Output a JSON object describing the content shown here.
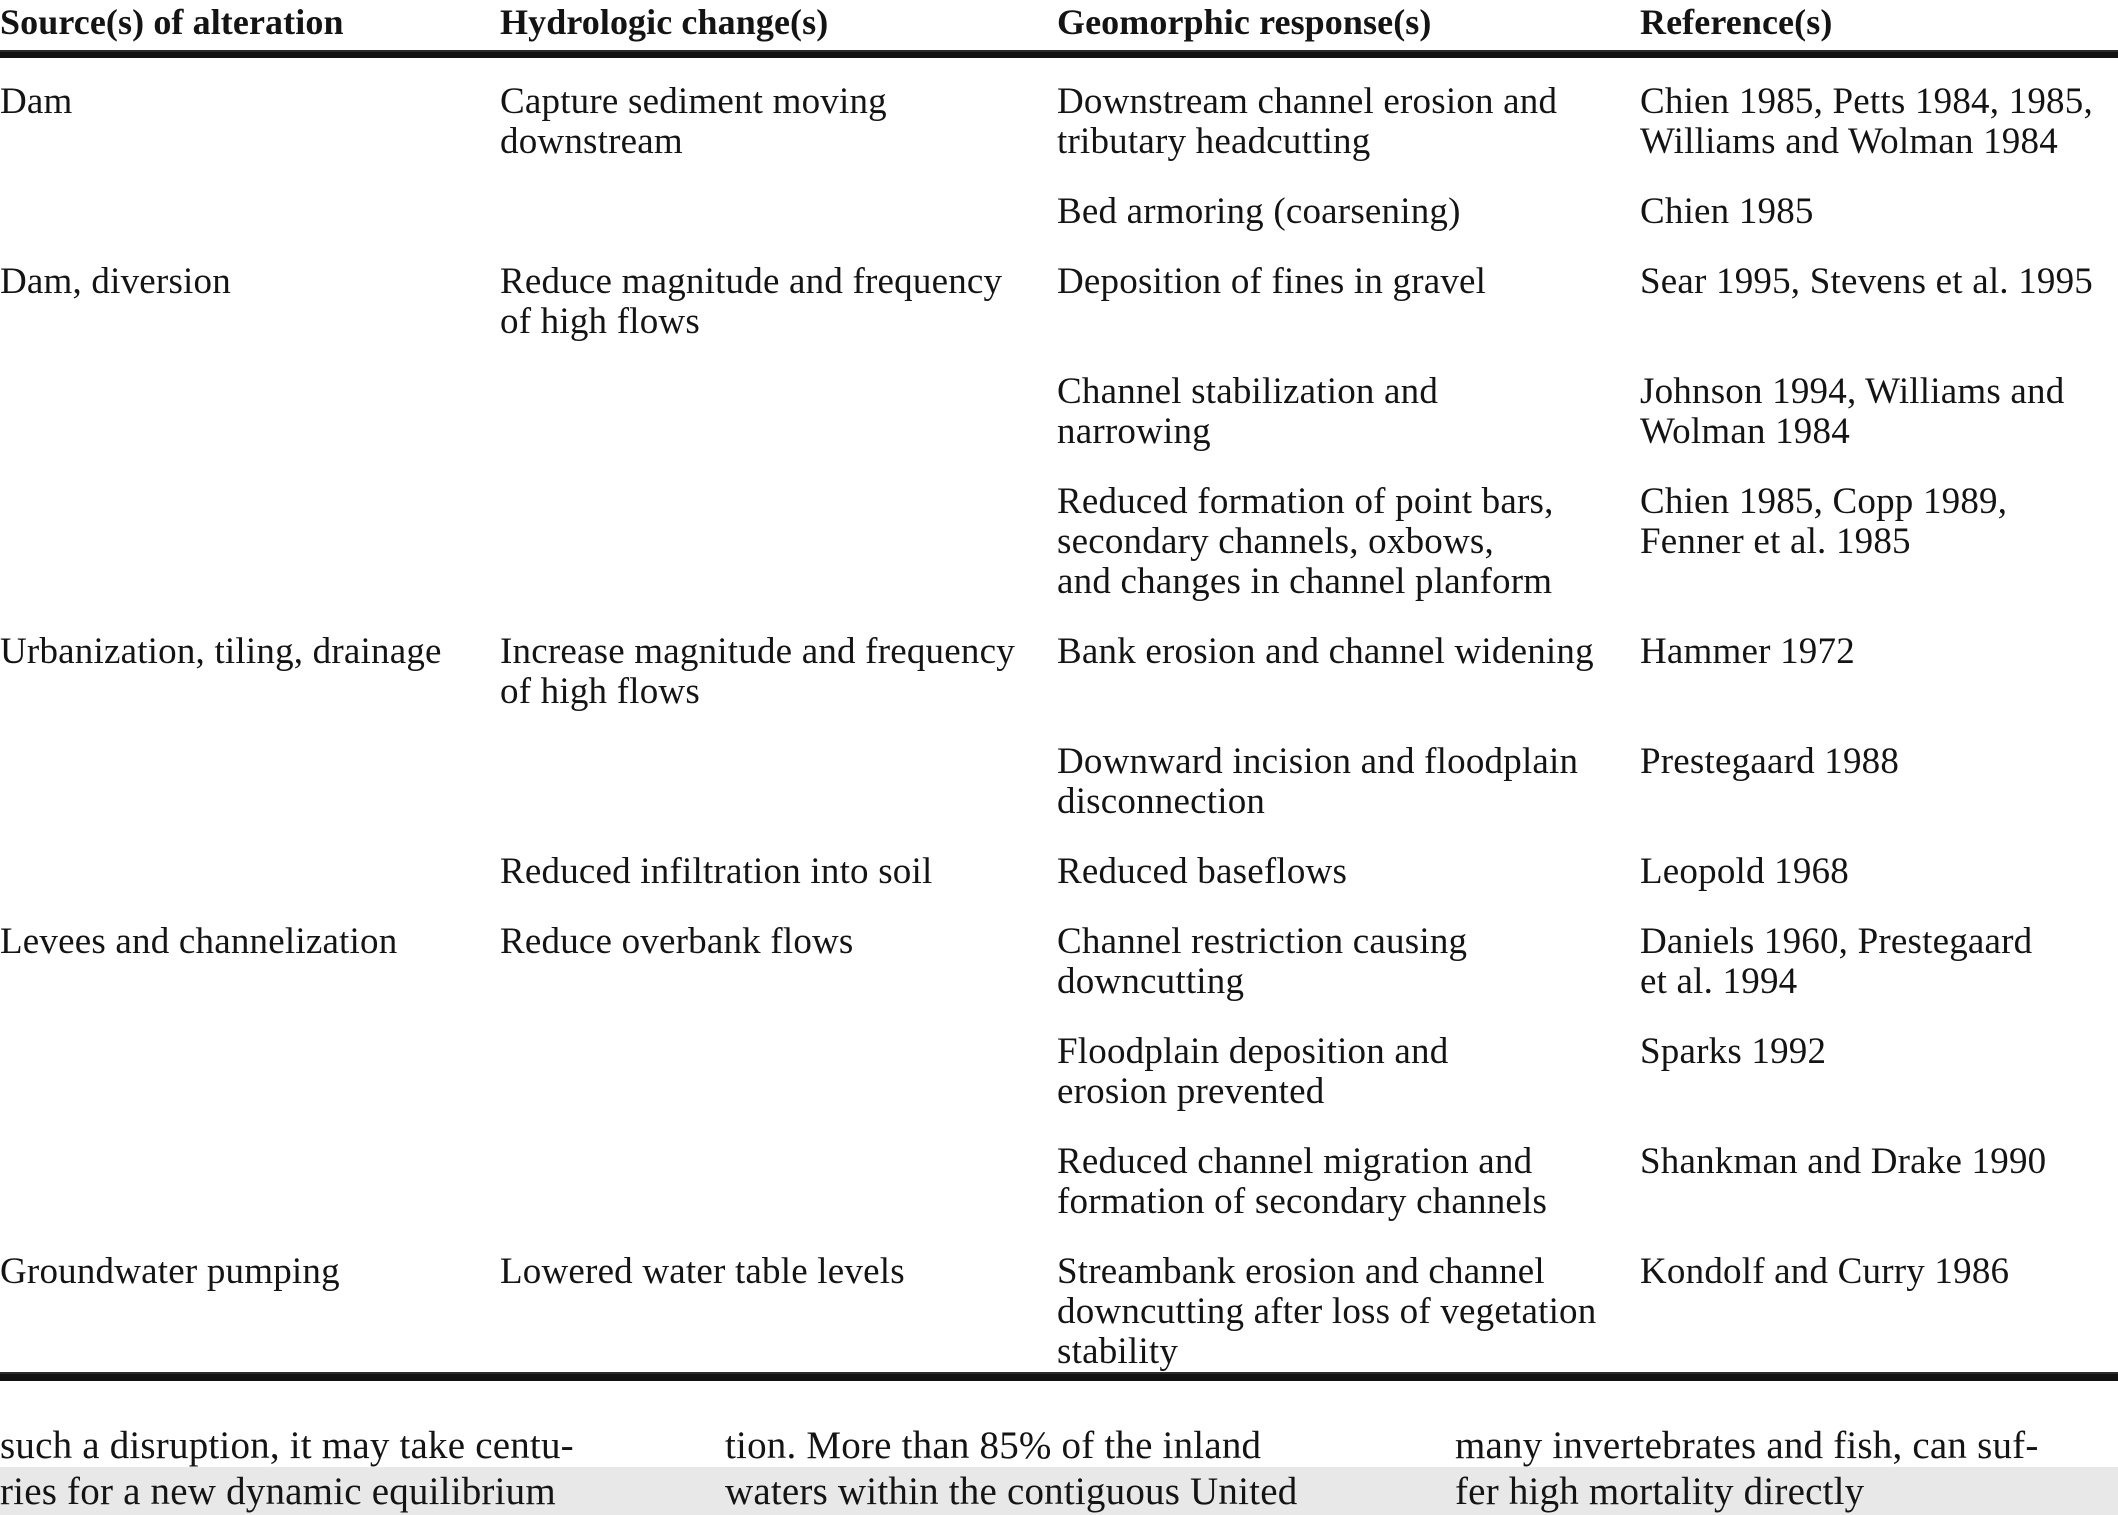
{
  "table": {
    "headers": {
      "source": "Source(s) of alteration",
      "hydro": "Hydrologic change(s)",
      "geo": "Geomorphic response(s)",
      "ref": "Reference(s)"
    },
    "rows": [
      {
        "source": "Dam",
        "hydro": "Capture sediment moving\ndownstream",
        "geo": "Downstream channel erosion and\ntributary headcutting",
        "ref": "Chien 1985, Petts 1984, 1985,\nWilliams and Wolman 1984"
      },
      {
        "source": "",
        "hydro": "",
        "geo": "Bed armoring (coarsening)",
        "ref": "Chien 1985"
      },
      {
        "source": "Dam, diversion",
        "hydro": "Reduce magnitude and frequency\nof high flows",
        "geo": "Deposition of fines in gravel",
        "ref": "Sear 1995, Stevens et al. 1995"
      },
      {
        "source": "",
        "hydro": "",
        "geo": "Channel stabilization and\nnarrowing",
        "ref": "Johnson 1994, Williams and\nWolman 1984"
      },
      {
        "source": "",
        "hydro": "",
        "geo": "Reduced formation of point bars,\nsecondary channels, oxbows,\nand changes in channel planform",
        "ref": "Chien 1985, Copp 1989,\nFenner et al. 1985"
      },
      {
        "source": "Urbanization, tiling, drainage",
        "hydro": "Increase magnitude and frequency\nof high flows",
        "geo": "Bank erosion and channel widening",
        "ref": "Hammer 1972"
      },
      {
        "source": "",
        "hydro": "",
        "geo": "Downward incision and floodplain\ndisconnection",
        "ref": "Prestegaard 1988"
      },
      {
        "source": "",
        "hydro": "Reduced infiltration into soil",
        "geo": "Reduced baseflows",
        "ref": "Leopold 1968"
      },
      {
        "source": "Levees and channelization",
        "hydro": "Reduce overbank flows",
        "geo": "Channel restriction causing\ndowncutting",
        "ref": "Daniels 1960, Prestegaard\net al. 1994"
      },
      {
        "source": "",
        "hydro": "",
        "geo": "Floodplain deposition and\nerosion prevented",
        "ref": "Sparks 1992"
      },
      {
        "source": "",
        "hydro": "",
        "geo": "Reduced channel migration and\nformation of secondary channels",
        "ref": "Shankman and Drake 1990"
      },
      {
        "source": "Groundwater pumping",
        "hydro": "Lowered water table levels",
        "geo": "Streambank erosion and channel\ndowncutting after loss of vegetation\nstability",
        "ref": "Kondolf and Curry 1986"
      }
    ]
  },
  "footer": {
    "col1": "such a disruption, it may take centu-\nries for a new dynamic equilibrium",
    "col2": "tion. More than 85% of the inland\nwaters within the contiguous United",
    "col3": "many invertebrates and fish, can suf-\nfer high mortality directly"
  }
}
